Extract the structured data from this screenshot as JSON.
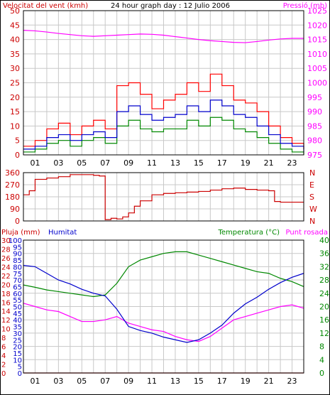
{
  "chart_data": [
    {
      "type": "line",
      "title": "24 hour graph day : 12 Julio 2006",
      "left_axis_label": "Velocitat del vent (kmh)",
      "right_axis_label": "Pressió (mb)",
      "left_ylim": [
        0,
        50
      ],
      "right_ylim": [
        975,
        1025
      ],
      "left_ticks": [
        "0",
        "5",
        "10",
        "15",
        "20",
        "25",
        "30",
        "35",
        "40",
        "45",
        "50"
      ],
      "right_ticks": [
        "975",
        "980",
        "985",
        "990",
        "995",
        "1000",
        "1005",
        "1010",
        "1015",
        "1020",
        "1025"
      ],
      "x_ticks": [
        "01",
        "03",
        "05",
        "07",
        "09",
        "11",
        "13",
        "15",
        "17",
        "19",
        "21",
        "23"
      ],
      "grid": true,
      "colors": {
        "gust": "#ff0000",
        "wind": "#0000cc",
        "wind_min": "#008800",
        "pressure": "#ff00ff"
      },
      "x": [
        0,
        1,
        2,
        3,
        4,
        5,
        6,
        7,
        8,
        9,
        10,
        11,
        12,
        13,
        14,
        15,
        16,
        17,
        18,
        19,
        20,
        21,
        22,
        23,
        24
      ],
      "series": [
        {
          "name": "Pressió",
          "axis": "right",
          "values": [
            1018.2,
            1018.0,
            1017.6,
            1017.1,
            1016.7,
            1016.3,
            1016.1,
            1016.3,
            1016.5,
            1016.7,
            1016.9,
            1016.8,
            1016.5,
            1016.0,
            1015.5,
            1015.0,
            1014.6,
            1014.3,
            1014.0,
            1013.9,
            1014.3,
            1014.8,
            1015.2,
            1015.4,
            1015.4
          ]
        },
        {
          "axis": "left",
          "values": [
            3,
            5,
            9,
            11,
            7,
            10,
            12,
            9,
            24,
            25,
            21,
            16,
            19,
            21,
            25,
            22,
            28,
            24,
            19,
            18,
            15,
            10,
            6,
            4,
            2
          ]
        },
        {
          "axis": "left",
          "values": [
            2,
            3,
            6,
            7,
            5,
            7,
            8,
            6,
            15,
            17,
            14,
            12,
            13,
            14,
            17,
            15,
            19,
            17,
            14,
            13,
            10,
            7,
            4,
            3,
            1
          ]
        },
        {
          "axis": "left",
          "values": [
            1,
            2,
            4,
            5,
            3,
            5,
            6,
            4,
            10,
            12,
            9,
            8,
            9,
            9,
            12,
            10,
            13,
            12,
            9,
            8,
            6,
            4,
            2,
            1,
            0
          ]
        }
      ]
    },
    {
      "type": "line",
      "ylim": [
        0,
        360
      ],
      "left_ticks": [
        "0",
        "90",
        "180",
        "270",
        "360"
      ],
      "right_ticks": [
        "N",
        "W",
        "S",
        "E",
        "N"
      ],
      "colors": {
        "direction": "#cc0000"
      },
      "x": [
        0,
        0.5,
        1,
        2,
        3,
        4,
        5,
        6,
        6.5,
        7,
        7.5,
        8,
        8.5,
        9,
        9.5,
        10,
        11,
        12,
        13,
        14,
        15,
        16,
        17,
        18,
        19,
        20,
        21,
        21.5,
        22,
        23,
        24
      ],
      "series": [
        {
          "values": [
            195,
            225,
            310,
            320,
            330,
            345,
            345,
            340,
            335,
            10,
            20,
            15,
            30,
            60,
            110,
            150,
            195,
            205,
            210,
            215,
            220,
            230,
            240,
            245,
            235,
            230,
            225,
            145,
            140,
            140,
            140
          ]
        }
      ]
    },
    {
      "type": "line",
      "left_axis_label": "Pluja (mm)",
      "left_axis_label2": "Humitat",
      "right_axis_label": "Temperatura (°C)",
      "right_axis_label2": "Punt rosada",
      "ylim_rain": [
        0,
        10
      ],
      "ylim_humidity": [
        0,
        100
      ],
      "ylim_temp": [
        0,
        40
      ],
      "ticks_rain": [
        "0",
        "2",
        "4",
        "6",
        "8",
        "10",
        "12",
        "14",
        "16",
        "18",
        "20",
        "22",
        "24",
        "26",
        "28",
        "30"
      ],
      "ticks_humidity": [
        "0",
        "5",
        "10",
        "15",
        "20",
        "25",
        "30",
        "35",
        "40",
        "45",
        "50",
        "55",
        "60",
        "65",
        "70",
        "75",
        "80",
        "85",
        "90",
        "95",
        "100"
      ],
      "ticks_temp": [
        "0",
        "4",
        "8",
        "12",
        "16",
        "20",
        "24",
        "28",
        "32",
        "36",
        "40"
      ],
      "x_ticks": [
        "01",
        "03",
        "05",
        "07",
        "09",
        "11",
        "13",
        "15",
        "17",
        "19",
        "21",
        "23"
      ],
      "colors": {
        "rain": "#cc0000",
        "humidity": "#0000cc",
        "temperature": "#008800",
        "dewpoint": "#ff00ff"
      },
      "x": [
        0,
        1,
        2,
        3,
        4,
        5,
        6,
        7,
        8,
        9,
        10,
        11,
        12,
        13,
        14,
        15,
        16,
        17,
        18,
        19,
        20,
        21,
        22,
        23,
        24
      ],
      "series": [
        {
          "name": "Humitat",
          "axis": "humidity",
          "values": [
            81,
            80,
            75,
            70,
            67,
            63,
            60,
            58,
            48,
            35,
            32,
            30,
            27,
            25,
            23,
            25,
            30,
            36,
            45,
            52,
            57,
            63,
            68,
            72,
            75
          ]
        },
        {
          "name": "Temperatura",
          "axis": "temp",
          "values": [
            26.5,
            25.8,
            25,
            24.5,
            24,
            23.5,
            23,
            23.5,
            27,
            32,
            34,
            35,
            36,
            36.5,
            36.5,
            35.5,
            34.5,
            33.5,
            32.5,
            31.5,
            30.5,
            30,
            28.5,
            27.5,
            26
          ]
        },
        {
          "name": "Punt rosada",
          "axis": "temp",
          "values": [
            21,
            20,
            19,
            18.5,
            17,
            15.5,
            15.5,
            16,
            17,
            15,
            14,
            13,
            12.5,
            11,
            10,
            9.5,
            11,
            13.5,
            16,
            17,
            18,
            19,
            20,
            20.5,
            19.5
          ]
        },
        {
          "name": "Pluja",
          "axis": "rain",
          "values": [
            0,
            0,
            0,
            0,
            0,
            0,
            0,
            0,
            0,
            0,
            0,
            0,
            0,
            0,
            0,
            0,
            0,
            0,
            0,
            0,
            0,
            0,
            0,
            0,
            0
          ]
        }
      ]
    }
  ]
}
